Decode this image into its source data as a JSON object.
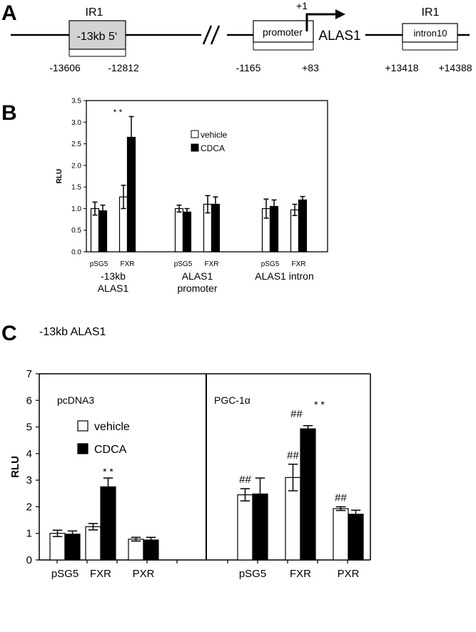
{
  "panel_a": {
    "letter": "A",
    "left_box_label": "-13kb 5‘",
    "left_box_tag": "IR1",
    "left_coords": [
      "-13606",
      "-12812"
    ],
    "promoter_label": "promoter",
    "tss_label": "+1",
    "gene_label": "ALAS1",
    "promoter_coords": [
      "-1165",
      "+83"
    ],
    "intron_label": "intron10",
    "intron_tag": "IR1",
    "intron_coords": [
      "+13418",
      "+14388"
    ]
  },
  "chart_data": [
    {
      "panel": "B",
      "type": "bar",
      "title": "",
      "ylabel": "RLU",
      "ylim": [
        0,
        3.5
      ],
      "yticks": [
        "0.0",
        "0.5",
        "1.0",
        "1.5",
        "2.0",
        "2.5",
        "3.0",
        "3.5"
      ],
      "legend": {
        "placement": "top-center",
        "entries": [
          "vehicle",
          "CDCA"
        ]
      },
      "series_colors": {
        "vehicle": "#ffffff",
        "CDCA": "#000000"
      },
      "groups": [
        {
          "label_lines": [
            "-13kb",
            "ALAS1"
          ],
          "categories": [
            "pSG5",
            "FXR"
          ],
          "vehicle": [
            1.0,
            1.27
          ],
          "vehicle_err": [
            0.15,
            0.27
          ],
          "CDCA": [
            0.95,
            2.65
          ],
          "CDCA_err": [
            0.13,
            0.48
          ],
          "annotations": [
            {
              "category": 1,
              "text": "* *"
            }
          ]
        },
        {
          "label_lines": [
            "ALAS1",
            "promoter"
          ],
          "categories": [
            "pSG5",
            "FXR"
          ],
          "vehicle": [
            1.0,
            1.1
          ],
          "vehicle_err": [
            0.08,
            0.2
          ],
          "CDCA": [
            0.92,
            1.1
          ],
          "CDCA_err": [
            0.08,
            0.17
          ],
          "annotations": []
        },
        {
          "label_lines": [
            "ALAS1 intron"
          ],
          "categories": [
            "pSG5",
            "FXR"
          ],
          "vehicle": [
            1.0,
            0.97
          ],
          "vehicle_err": [
            0.22,
            0.13
          ],
          "CDCA": [
            1.05,
            1.2
          ],
          "CDCA_err": [
            0.15,
            0.08
          ],
          "annotations": []
        }
      ]
    },
    {
      "panel": "C",
      "type": "bar",
      "title": "-13kb ALAS1",
      "ylabel": "RLU",
      "ylim": [
        0,
        7
      ],
      "yticks": [
        "0",
        "1",
        "2",
        "3",
        "4",
        "5",
        "6",
        "7"
      ],
      "legend": {
        "placement": "left-section",
        "entries": [
          "vehicle",
          "CDCA"
        ]
      },
      "series_colors": {
        "vehicle": "#ffffff",
        "CDCA": "#000000"
      },
      "sections": [
        {
          "label": "pcDNA3",
          "categories": [
            "pSG5",
            "FXR",
            "PXR"
          ],
          "vehicle": [
            1.0,
            1.25,
            0.78
          ],
          "vehicle_err": [
            0.12,
            0.12,
            0.07
          ],
          "CDCA": [
            0.97,
            2.75,
            0.75
          ],
          "CDCA_err": [
            0.12,
            0.33,
            0.1
          ],
          "annotations": [
            {
              "category": 1,
              "series": "CDCA",
              "text": "* *"
            }
          ]
        },
        {
          "label": "PGC-1α",
          "categories": [
            "pSG5",
            "FXR",
            "PXR"
          ],
          "vehicle": [
            2.45,
            3.1,
            1.93
          ],
          "vehicle_err": [
            0.23,
            0.5,
            0.07
          ],
          "CDCA": [
            2.48,
            4.93,
            1.72
          ],
          "CDCA_err": [
            0.6,
            0.12,
            0.15
          ],
          "annotations": [
            {
              "category": 0,
              "series": "vehicle",
              "text": "##"
            },
            {
              "category": 1,
              "series": "vehicle",
              "text": "##"
            },
            {
              "category": 1,
              "series": "CDCA",
              "text": "##"
            },
            {
              "category": 1,
              "series": "CDCA",
              "text": "* *"
            },
            {
              "category": 2,
              "series": "vehicle",
              "text": "##"
            }
          ]
        }
      ]
    }
  ]
}
